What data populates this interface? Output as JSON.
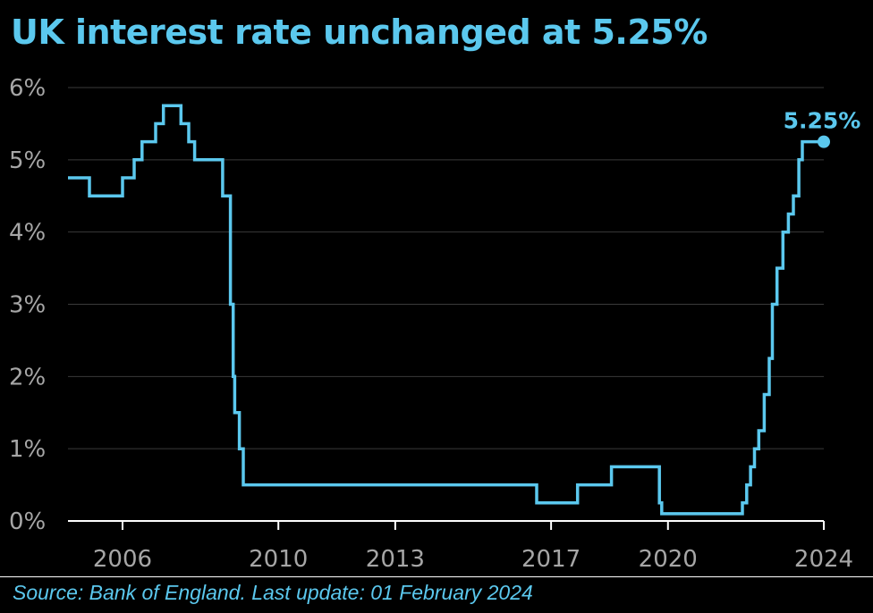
{
  "title": "UK interest rate unchanged at 5.25%",
  "source": "Source: Bank of England. Last update: 01 February 2024",
  "colors": {
    "line": "#5bc8ee",
    "background": "#000000",
    "grid": "#3a3a3a",
    "tick_text": "#a6a6a6",
    "axis": "#ffffff"
  },
  "chart_data": {
    "type": "line",
    "title": "UK interest rate unchanged at 5.25%",
    "xlabel": "",
    "ylabel": "",
    "xlim": [
      2004.6,
      2024.0
    ],
    "ylim": [
      0,
      6
    ],
    "grid": true,
    "legend": "none",
    "y_ticks": [
      0,
      1,
      2,
      3,
      4,
      5,
      6
    ],
    "y_tick_labels": [
      "0%",
      "1%",
      "2%",
      "3%",
      "4%",
      "5%",
      "6%"
    ],
    "x_ticks": [
      2006,
      2010,
      2013,
      2017,
      2020,
      2024
    ],
    "x_tick_labels": [
      "2006",
      "2010",
      "2013",
      "2017",
      "2020",
      "2024"
    ],
    "end_label": "5.25%",
    "series": [
      {
        "step": true,
        "x": [
          2004.6,
          2005.15,
          2006.0,
          2006.3,
          2006.5,
          2006.85,
          2007.05,
          2007.5,
          2007.7,
          2007.85,
          2008.57,
          2008.77,
          2008.84,
          2008.88,
          2009.0,
          2009.1,
          2009.2,
          2016.63,
          2017.68,
          2018.55,
          2019.78,
          2019.84,
          2021.72,
          2021.91,
          2022.02,
          2022.12,
          2022.22,
          2022.33,
          2022.47,
          2022.6,
          2022.68,
          2022.8,
          2022.95,
          2023.09,
          2023.22,
          2023.36,
          2023.45,
          2023.58,
          2024.0
        ],
        "y": [
          4.75,
          4.5,
          4.75,
          5.0,
          5.25,
          5.5,
          5.75,
          5.5,
          5.25,
          5.0,
          4.5,
          3.0,
          2.0,
          1.5,
          1.0,
          0.5,
          0.5,
          0.25,
          0.5,
          0.75,
          0.25,
          0.1,
          0.1,
          0.25,
          0.5,
          0.75,
          1.0,
          1.25,
          1.75,
          2.25,
          3.0,
          3.5,
          4.0,
          4.25,
          4.5,
          5.0,
          5.25,
          5.25,
          5.25
        ]
      }
    ]
  }
}
